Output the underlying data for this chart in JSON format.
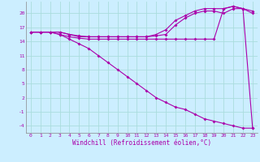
{
  "xlabel": "Windchill (Refroidissement éolien,°C)",
  "bg_color": "#cceeff",
  "grid_color": "#aadddd",
  "line_color": "#aa00aa",
  "spine_color": "#888888",
  "xlim": [
    -0.5,
    23.5
  ],
  "ylim": [
    -5.5,
    22.5
  ],
  "xticks": [
    0,
    1,
    2,
    3,
    4,
    5,
    6,
    7,
    8,
    9,
    10,
    11,
    12,
    13,
    14,
    15,
    16,
    17,
    18,
    19,
    20,
    21,
    22,
    23
  ],
  "yticks": [
    -4,
    -1,
    2,
    5,
    8,
    11,
    14,
    17,
    20
  ],
  "line1_x": [
    0,
    1,
    2,
    3,
    4,
    5,
    6,
    7,
    8,
    9,
    10,
    11,
    12,
    13,
    14,
    15,
    16,
    17,
    18,
    19,
    20,
    21,
    22,
    23
  ],
  "line1_y": [
    16,
    16,
    16,
    16,
    15.5,
    15.2,
    15,
    15,
    15,
    15,
    15,
    15,
    15,
    15.5,
    16.5,
    18.5,
    19.5,
    20.5,
    21,
    21,
    21,
    21.5,
    21,
    20.5
  ],
  "line2_x": [
    0,
    1,
    2,
    3,
    4,
    5,
    6,
    7,
    8,
    9,
    10,
    11,
    12,
    13,
    14,
    15,
    16,
    17,
    18,
    19,
    20,
    21,
    22,
    23
  ],
  "line2_y": [
    16,
    16,
    16,
    16,
    15.5,
    15,
    15,
    15,
    15,
    15,
    15,
    15,
    15,
    15.2,
    15.5,
    17.5,
    19,
    20,
    20.5,
    20.5,
    20,
    21,
    21,
    20
  ],
  "line3_x": [
    0,
    1,
    2,
    3,
    4,
    5,
    6,
    7,
    8,
    9,
    10,
    11,
    12,
    13,
    14,
    15,
    16,
    17,
    18,
    19,
    20,
    21,
    22,
    23
  ],
  "line3_y": [
    16,
    16,
    16,
    15.5,
    15,
    14.7,
    14.5,
    14.5,
    14.5,
    14.5,
    14.5,
    14.5,
    14.5,
    14.5,
    14.5,
    14.5,
    14.5,
    14.5,
    14.5,
    14.5,
    21,
    21.5,
    21,
    -4.5
  ],
  "line4_x": [
    0,
    1,
    2,
    3,
    4,
    5,
    6,
    7,
    8,
    9,
    10,
    11,
    12,
    13,
    14,
    15,
    16,
    17,
    18,
    19,
    20,
    21,
    22,
    23
  ],
  "line4_y": [
    16,
    16,
    16,
    15.5,
    14.5,
    13.5,
    12.5,
    11,
    9.5,
    8,
    6.5,
    5,
    3.5,
    2,
    1,
    0,
    -0.5,
    -1.5,
    -2.5,
    -3,
    -3.5,
    -4,
    -4.5,
    -4.5
  ],
  "tick_fontsize": 4.5,
  "label_fontsize": 5.5,
  "marker_size": 2.0,
  "line_width": 0.8
}
